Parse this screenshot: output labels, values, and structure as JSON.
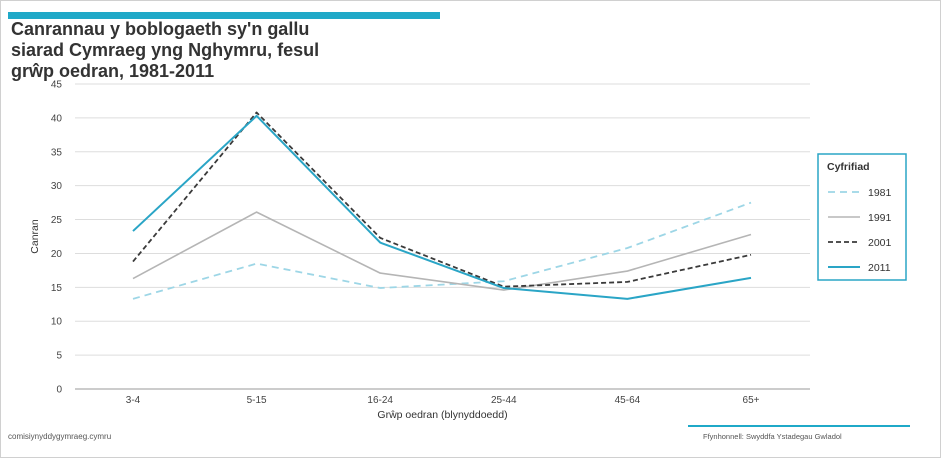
{
  "title": "Canrannau y boblogaeth sy'n gallu\nsiarad Cymraeg yng Nghymru, fesul\ngrŵp oedran, 1981-2011",
  "footer": {
    "website": "comisiynyddygymraeg.cymru",
    "source": "Ffynhonnell:  Swyddfa Ystadegau Gwladol"
  },
  "colors": {
    "accent": "#1fa9c8",
    "s1981": "#9dd6e6",
    "s1991": "#b5b5b5",
    "s2001": "#3a3a3a",
    "s2011": "#2aa5c6",
    "grid": "#dddddd",
    "legend_border": "#2aa5c6"
  },
  "chart_data": {
    "type": "line",
    "title": "",
    "xlabel": "Grŵp oedran  (blynyddoedd)",
    "ylabel": "Canran",
    "ylim": [
      0,
      45
    ],
    "yticks": [
      0,
      5,
      10,
      15,
      20,
      25,
      30,
      35,
      40,
      45
    ],
    "grid": true,
    "legend_title": "Cyfrifiad",
    "legend_position": "right",
    "categories": [
      "3-4",
      "5-15",
      "16-24",
      "25-44",
      "45-64",
      "65+"
    ],
    "series": [
      {
        "name": "1981",
        "values": [
          13.3,
          18.5,
          14.9,
          15.9,
          20.8,
          27.5
        ],
        "style": "dashed-light"
      },
      {
        "name": "1991",
        "values": [
          16.3,
          26.1,
          17.1,
          14.6,
          17.4,
          22.8
        ],
        "style": "solid-grey"
      },
      {
        "name": "2001",
        "values": [
          18.8,
          40.8,
          22.3,
          15.1,
          15.8,
          19.8
        ],
        "style": "dashed-dark"
      },
      {
        "name": "2011",
        "values": [
          23.3,
          40.3,
          21.6,
          14.9,
          13.3,
          16.4
        ],
        "style": "solid-blue"
      }
    ]
  }
}
